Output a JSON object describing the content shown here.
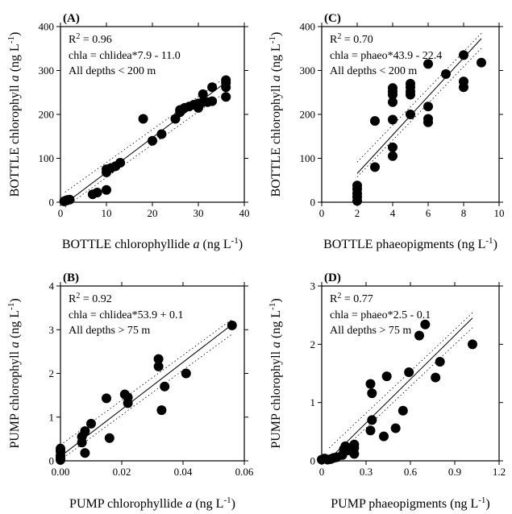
{
  "chart_data": [
    {
      "type": "scatter",
      "panel": "(A)",
      "xlabel": "BOTTLE chlorophyllide",
      "ylabel": "BOTTLE chlorophyll",
      "xlim": [
        0,
        40
      ],
      "ylim": [
        0,
        400
      ],
      "xticks": [
        "0",
        "10",
        "20",
        "30",
        "40"
      ],
      "yticks": [
        "0",
        "100",
        "200",
        "300",
        "400"
      ],
      "annotations": [
        "R",
        "2",
        " = 0.96",
        "chla = chlidea*7.9 - 11.0",
        "All depths < 200 m"
      ],
      "fit": {
        "slope": 7.9,
        "intercept": -11.0,
        "x_range": [
          1,
          36
        ]
      },
      "points": [
        [
          0.8,
          2
        ],
        [
          1,
          3
        ],
        [
          1.2,
          4
        ],
        [
          1.5,
          5
        ],
        [
          2,
          6
        ],
        [
          7,
          18
        ],
        [
          8,
          22
        ],
        [
          10,
          28
        ],
        [
          10,
          68
        ],
        [
          10,
          75
        ],
        [
          11,
          78
        ],
        [
          12,
          82
        ],
        [
          13,
          90
        ],
        [
          18,
          190
        ],
        [
          20,
          140
        ],
        [
          22,
          155
        ],
        [
          25,
          190
        ],
        [
          26,
          205
        ],
        [
          26,
          210
        ],
        [
          27,
          215
        ],
        [
          28,
          218
        ],
        [
          29,
          222
        ],
        [
          30,
          215
        ],
        [
          30,
          225
        ],
        [
          31,
          228
        ],
        [
          31,
          246
        ],
        [
          32,
          228
        ],
        [
          33,
          230
        ],
        [
          33,
          262
        ],
        [
          36,
          240
        ],
        [
          36,
          262
        ],
        [
          36,
          272
        ],
        [
          36,
          278
        ]
      ]
    },
    {
      "type": "scatter",
      "panel": "(C)",
      "xlabel": "BOTTLE phaeopigments",
      "ylabel": "BOTTLE chlorophyll",
      "xlim": [
        0,
        10
      ],
      "ylim": [
        0,
        400
      ],
      "xticks": [
        "0",
        "2",
        "4",
        "6",
        "8",
        "10"
      ],
      "yticks": [
        "0",
        "100",
        "200",
        "300",
        "400"
      ],
      "annotations": [
        "R",
        "2",
        " = 0.70",
        "chla = phaeo*43.9 - 22.4",
        "All depths < 200 m"
      ],
      "fit": {
        "slope": 43.9,
        "intercept": -22.4,
        "x_range": [
          2,
          9
        ]
      },
      "points": [
        [
          2,
          3
        ],
        [
          2,
          12
        ],
        [
          2,
          20
        ],
        [
          2,
          30
        ],
        [
          2,
          38
        ],
        [
          3,
          80
        ],
        [
          3,
          185
        ],
        [
          4,
          105
        ],
        [
          4,
          125
        ],
        [
          4,
          188
        ],
        [
          4,
          228
        ],
        [
          4,
          245
        ],
        [
          4,
          252
        ],
        [
          4,
          260
        ],
        [
          5,
          200
        ],
        [
          5,
          245
        ],
        [
          5,
          252
        ],
        [
          5,
          262
        ],
        [
          5,
          270
        ],
        [
          6,
          182
        ],
        [
          6,
          190
        ],
        [
          6,
          218
        ],
        [
          6,
          315
        ],
        [
          7,
          292
        ],
        [
          8,
          262
        ],
        [
          8,
          275
        ],
        [
          8,
          335
        ],
        [
          9,
          318
        ]
      ]
    },
    {
      "type": "scatter",
      "panel": "(B)",
      "xlabel": "PUMP chlorophyllide",
      "ylabel": "PUMP chlorophyll",
      "xlim": [
        0,
        0.06
      ],
      "ylim": [
        0,
        4
      ],
      "xticks": [
        "0.00",
        "0.02",
        "0.04",
        "0.06"
      ],
      "yticks": [
        "0",
        "1",
        "2",
        "3",
        "4"
      ],
      "annotations": [
        "R",
        "2",
        " = 0.92",
        "chla = chlidea*53.9 + 0.1",
        "All depths > 75 m"
      ],
      "fit": {
        "slope": 53.9,
        "intercept": 0.1,
        "x_range": [
          0,
          0.056
        ]
      },
      "points": [
        [
          0,
          0.02
        ],
        [
          0,
          0.06
        ],
        [
          0,
          0.12
        ],
        [
          0,
          0.22
        ],
        [
          0,
          0.28
        ],
        [
          0.007,
          0.42
        ],
        [
          0.007,
          0.55
        ],
        [
          0.008,
          0.18
        ],
        [
          0.008,
          0.68
        ],
        [
          0.01,
          0.85
        ],
        [
          0.015,
          1.43
        ],
        [
          0.016,
          0.52
        ],
        [
          0.021,
          1.52
        ],
        [
          0.022,
          1.32
        ],
        [
          0.022,
          1.45
        ],
        [
          0.032,
          2.16
        ],
        [
          0.032,
          2.33
        ],
        [
          0.033,
          1.16
        ],
        [
          0.034,
          1.7
        ],
        [
          0.041,
          2.0
        ],
        [
          0.056,
          3.1
        ]
      ]
    },
    {
      "type": "scatter",
      "panel": "(D)",
      "xlabel": "PUMP phaeopigments",
      "ylabel": "PUMP chlorophyll",
      "xlim": [
        0,
        1.2
      ],
      "ylim": [
        0,
        3
      ],
      "xticks": [
        "0",
        "0.3",
        "0.6",
        "0.9",
        "1.2"
      ],
      "yticks": [
        "0",
        "1",
        "2",
        "3"
      ],
      "annotations": [
        "R",
        "2",
        " = 0.77",
        "chla = phaeo*2.5 - 0.1",
        "All depths > 75 m"
      ],
      "fit": {
        "slope": 2.5,
        "intercept": -0.1,
        "x_range": [
          0.05,
          1.02
        ]
      },
      "points": [
        [
          0,
          0.02
        ],
        [
          0.02,
          0.04
        ],
        [
          0.04,
          0.02
        ],
        [
          0.06,
          0.03
        ],
        [
          0.08,
          0.05
        ],
        [
          0.1,
          0.06
        ],
        [
          0.14,
          0.1
        ],
        [
          0.15,
          0.2
        ],
        [
          0.16,
          0.25
        ],
        [
          0.18,
          0.18
        ],
        [
          0.22,
          0.12
        ],
        [
          0.22,
          0.22
        ],
        [
          0.22,
          0.28
        ],
        [
          0.33,
          0.52
        ],
        [
          0.33,
          1.32
        ],
        [
          0.34,
          0.7
        ],
        [
          0.34,
          1.16
        ],
        [
          0.42,
          0.42
        ],
        [
          0.44,
          1.45
        ],
        [
          0.5,
          0.56
        ],
        [
          0.55,
          0.86
        ],
        [
          0.59,
          1.52
        ],
        [
          0.66,
          2.15
        ],
        [
          0.7,
          2.34
        ],
        [
          0.77,
          1.43
        ],
        [
          0.8,
          1.7
        ],
        [
          1.02,
          2.0
        ]
      ]
    }
  ]
}
